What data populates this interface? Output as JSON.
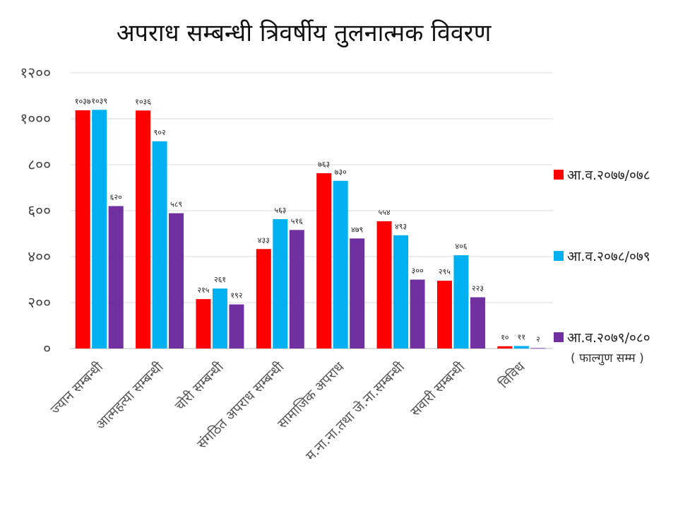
{
  "chart_data": {
    "type": "bar",
    "title": "अपराध सम्बन्धी त्रिवर्षीय तुलनात्मक विवरण",
    "xlabel": "",
    "ylabel": "",
    "ylim": [
      0,
      1200
    ],
    "yticks": [
      0,
      200,
      400,
      600,
      800,
      1000,
      1200
    ],
    "ytick_labels": [
      "०",
      "२००",
      "४००",
      "६००",
      "८००",
      "१०००",
      "१२००"
    ],
    "grid": true,
    "legend_position": "right",
    "categories": [
      "ज्यान सम्बन्धी",
      "आत्महत्या सम्बन्धी",
      "चोरी सम्बन्धी",
      "संगठित अपराध सम्बन्धी",
      "सामाजिक अपराध",
      "म.ना.ना.तथा जे.ना.सम्बन्धी",
      "सवारी सम्बन्धी",
      "विविध"
    ],
    "series": [
      {
        "name": "आ.व.२०७७/०७८",
        "color": "#ff0000",
        "values": [
          1037,
          1036,
          215,
          433,
          763,
          554,
          295,
          10
        ],
        "labels": [
          "१०३७",
          "१०३६",
          "२१५",
          "४३३",
          "७६३",
          "५५४",
          "२९५",
          "१०"
        ]
      },
      {
        "name": "आ.व.२०७८/०७९",
        "color": "#00b0f0",
        "values": [
          1039,
          902,
          261,
          563,
          730,
          493,
          406,
          11
        ],
        "labels": [
          "१०३९",
          "९०२",
          "२६१",
          "५६३",
          "७३०",
          "४९३",
          "४०६",
          "११"
        ]
      },
      {
        "name": "आ.व.२०७९/०८०",
        "color": "#7030a0",
        "values": [
          620,
          589,
          192,
          516,
          479,
          300,
          223,
          2
        ],
        "labels": [
          "६२०",
          "५८९",
          "१९२",
          "५१६",
          "४७९",
          "३००",
          "२२३",
          "२"
        ]
      }
    ],
    "legend_note": "( फाल्गुण सम्म )"
  }
}
